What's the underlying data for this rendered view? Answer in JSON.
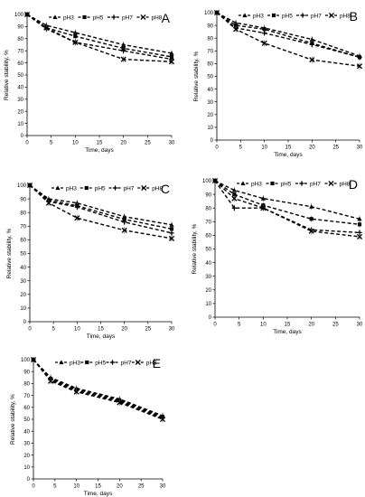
{
  "chart_data": [
    {
      "type": "line",
      "panel_label": "A",
      "xlabel": "Time, days",
      "ylabel": "Relative stability, %",
      "xlim": [
        0,
        30
      ],
      "ylim": [
        0,
        100
      ],
      "xticks": [
        0,
        5,
        10,
        15,
        20,
        25,
        30
      ],
      "yticks": [
        0,
        10,
        20,
        30,
        40,
        50,
        60,
        70,
        80,
        90,
        100
      ],
      "grid": false,
      "legend_position": "top",
      "x": [
        0,
        4,
        10,
        20,
        30
      ],
      "series": [
        {
          "name": "pH3",
          "values": [
            100,
            91,
            85,
            75,
            68
          ]
        },
        {
          "name": "pH5",
          "values": [
            100,
            89,
            82,
            72,
            65
          ]
        },
        {
          "name": "pH7",
          "values": [
            100,
            88,
            77,
            70,
            63
          ]
        },
        {
          "name": "pH8",
          "values": [
            100,
            89,
            77,
            63,
            61
          ]
        }
      ]
    },
    {
      "type": "line",
      "panel_label": "B",
      "xlabel": "Time, days",
      "ylabel": "Relative stability, %",
      "xlim": [
        0,
        30
      ],
      "ylim": [
        0,
        100
      ],
      "xticks": [
        0,
        5,
        10,
        15,
        20,
        25,
        30
      ],
      "yticks": [
        0,
        10,
        20,
        30,
        40,
        50,
        60,
        70,
        80,
        90,
        100
      ],
      "grid": false,
      "legend_position": "top",
      "x": [
        0,
        4,
        10,
        20,
        30
      ],
      "series": [
        {
          "name": "pH3",
          "values": [
            100,
            92,
            88,
            79,
            66
          ]
        },
        {
          "name": "pH5",
          "values": [
            100,
            90,
            87,
            76,
            65
          ]
        },
        {
          "name": "pH7",
          "values": [
            100,
            88,
            84,
            75,
            65
          ]
        },
        {
          "name": "pH8",
          "values": [
            100,
            87,
            76,
            63,
            58
          ]
        }
      ]
    },
    {
      "type": "line",
      "panel_label": "C",
      "xlabel": "Time, days",
      "ylabel": "Relative stability, %",
      "xlim": [
        0,
        30
      ],
      "ylim": [
        0,
        100
      ],
      "xticks": [
        0,
        5,
        10,
        15,
        20,
        25,
        30
      ],
      "yticks": [
        0,
        10,
        20,
        30,
        40,
        50,
        60,
        70,
        80,
        90,
        100
      ],
      "grid": false,
      "legend_position": "top",
      "x": [
        0,
        4,
        10,
        20,
        30
      ],
      "series": [
        {
          "name": "pH3",
          "values": [
            100,
            90,
            87,
            77,
            71
          ]
        },
        {
          "name": "pH5",
          "values": [
            100,
            89,
            85,
            75,
            68
          ]
        },
        {
          "name": "pH7",
          "values": [
            100,
            88,
            84,
            73,
            65
          ]
        },
        {
          "name": "pH8",
          "values": [
            100,
            87,
            76,
            67,
            61
          ]
        }
      ]
    },
    {
      "type": "line",
      "panel_label": "D",
      "xlabel": "Time, days",
      "ylabel": "Relative stability, %",
      "xlim": [
        0,
        30
      ],
      "ylim": [
        0,
        100
      ],
      "xticks": [
        0,
        5,
        10,
        15,
        20,
        25,
        30
      ],
      "yticks": [
        0,
        10,
        20,
        30,
        40,
        50,
        60,
        70,
        80,
        90,
        100
      ],
      "grid": false,
      "legend_position": "top",
      "x": [
        0,
        4,
        10,
        20,
        30
      ],
      "series": [
        {
          "name": "pH3",
          "values": [
            100,
            93,
            87,
            81,
            72
          ]
        },
        {
          "name": "pH5",
          "values": [
            100,
            90,
            82,
            72,
            68
          ]
        },
        {
          "name": "pH7",
          "values": [
            100,
            80,
            80,
            64,
            62
          ]
        },
        {
          "name": "pH8",
          "values": [
            100,
            87,
            80,
            63,
            59
          ]
        }
      ]
    },
    {
      "type": "line",
      "panel_label": "E",
      "xlabel": "Time, days",
      "ylabel": "Relative stability, %",
      "xlim": [
        0,
        30
      ],
      "ylim": [
        0,
        100
      ],
      "xticks": [
        0,
        5,
        10,
        15,
        20,
        25,
        30
      ],
      "yticks": [
        0,
        10,
        20,
        30,
        40,
        50,
        60,
        70,
        80,
        90,
        100
      ],
      "grid": false,
      "legend_position": "top",
      "x": [
        0,
        4,
        10,
        20,
        30
      ],
      "series": [
        {
          "name": "pH3",
          "values": [
            100,
            85,
            76,
            67,
            53
          ]
        },
        {
          "name": "pH5",
          "values": [
            100,
            84,
            75,
            66,
            52
          ]
        },
        {
          "name": "pH7",
          "values": [
            100,
            83,
            74,
            65,
            51
          ]
        },
        {
          "name": "pH8",
          "values": [
            100,
            82,
            73,
            64,
            50
          ]
        }
      ]
    }
  ]
}
